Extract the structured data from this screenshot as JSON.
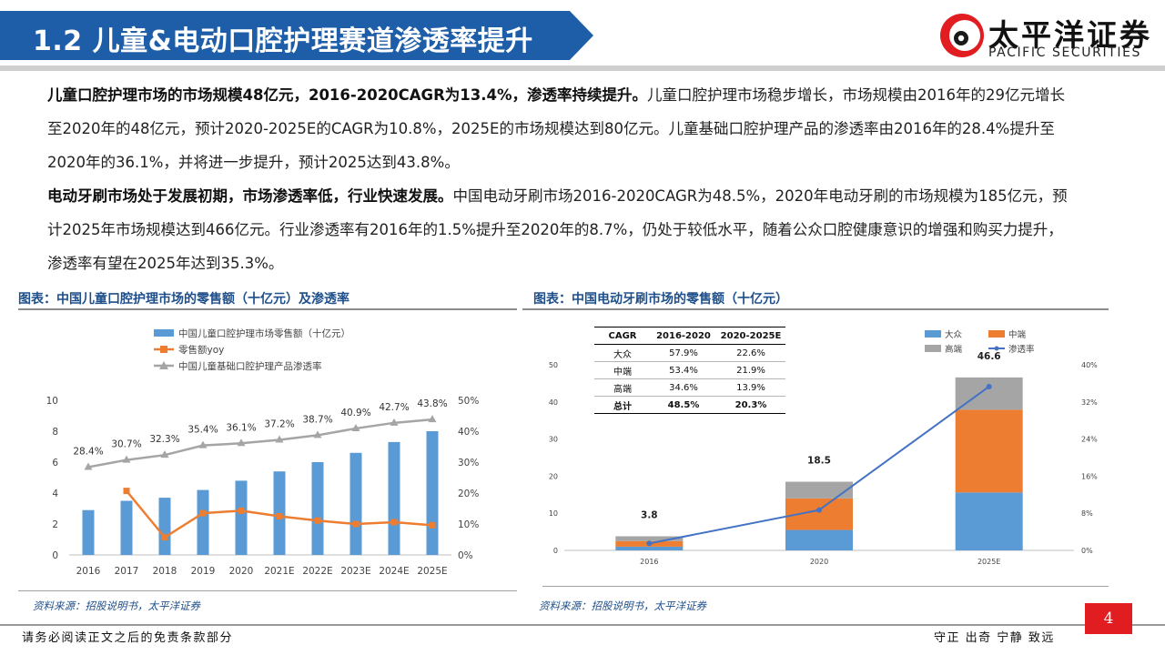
{
  "header": {
    "title": "1.2 儿童&电动口腔护理赛道渗透率提升",
    "logo_cn": "太平洋证券",
    "logo_en": "PACIFIC SECURITIES"
  },
  "body": {
    "p1_bold": "儿童口腔护理市场的市场规模48亿元，2016-2020CAGR为13.4%，渗透率持续提升。",
    "p1_text": "儿童口腔护理市场稳步增长，市场规模由2016年的29亿元增长至2020年的48亿元，预计2020-2025E的CAGR为10.8%，2025E的市场规模达到80亿元。儿童基础口腔护理产品的渗透率由2016年的28.4%提升至2020年的36.1%，并将进一步提升，预计2025达到43.8%。",
    "p2_bold": "电动牙刷市场处于发展初期，市场渗透率低，行业快速发展。",
    "p2_text": "中国电动牙刷市场2016-2020CAGR为48.5%，2020年电动牙刷的市场规模为185亿元，预计2025年市场规模达到466亿元。行业渗透率有2016年的1.5%提升至2020年的8.7%，仍处于较低水平，随着公众口腔健康意识的增强和购买力提升，渗透率有望在2025年达到35.3%。"
  },
  "left_panel": {
    "title": "图表：中国儿童口腔护理市场的零售额（十亿元）及渗透率",
    "source": "资料来源：招股说明书，太平洋证券"
  },
  "right_panel": {
    "title": "图表：中国电动牙刷市场的零售额（十亿元）",
    "source": "资料来源：招股说明书，太平洋证券",
    "table": {
      "headers": [
        "CAGR",
        "2016-2020",
        "2020-2025E"
      ],
      "rows": [
        [
          "大众",
          "57.9%",
          "22.6%"
        ],
        [
          "中端",
          "53.4%",
          "21.9%"
        ],
        [
          "高端",
          "34.6%",
          "13.9%"
        ]
      ],
      "total": [
        "总计",
        "48.5%",
        "20.3%"
      ]
    }
  },
  "footer": {
    "left": "请务必阅读正文之后的免责条款部分",
    "right": "守正 出奇 宁静 致远",
    "page": "4"
  },
  "colors": {
    "brand_blue": "#1e5ea8",
    "bar_blue": "#5b9bd5",
    "orange": "#ed7d31",
    "gray": "#a5a5a5",
    "line_blue": "#4472c4",
    "page_red": "#e11d22"
  },
  "chart_data": [
    {
      "type": "bar",
      "categories": [
        "2016",
        "2017",
        "2018",
        "2019",
        "2020",
        "2021E",
        "2022E",
        "2023E",
        "2024E",
        "2025E"
      ],
      "series": [
        {
          "name": "中国儿童口腔护理市场零售额（十亿元）",
          "kind": "bar",
          "axis": "left",
          "values": [
            2.9,
            3.5,
            3.7,
            4.2,
            4.8,
            5.4,
            6.0,
            6.6,
            7.3,
            8.0
          ]
        },
        {
          "name": "零售额yoy",
          "kind": "line",
          "axis": "right",
          "values": [
            null,
            20.7,
            5.7,
            13.5,
            14.3,
            12.5,
            11.1,
            10.0,
            10.6,
            9.6
          ]
        },
        {
          "name": "中国儿童基础口腔护理产品渗透率",
          "kind": "line",
          "axis": "right",
          "values": [
            28.4,
            30.7,
            32.3,
            35.4,
            36.1,
            37.2,
            38.7,
            40.9,
            42.7,
            43.8
          ],
          "labels": [
            "28.4%",
            "30.7%",
            "32.3%",
            "35.4%",
            "36.1%",
            "37.2%",
            "38.7%",
            "40.9%",
            "42.7%",
            "43.8%"
          ]
        }
      ],
      "y_ticks": [
        "0",
        "2",
        "4",
        "6",
        "8",
        "10"
      ],
      "y2_ticks": [
        "0%",
        "10%",
        "20%",
        "30%",
        "40%",
        "50%"
      ],
      "ylim": [
        0,
        10
      ],
      "y2lim": [
        0,
        50
      ],
      "legend": "top-left"
    },
    {
      "type": "bar",
      "stacked": true,
      "categories": [
        "2016",
        "2020",
        "2025E"
      ],
      "series": [
        {
          "name": "大众",
          "kind": "bar",
          "values": [
            1.0,
            5.5,
            15.6
          ]
        },
        {
          "name": "中端",
          "kind": "bar",
          "values": [
            1.5,
            8.5,
            22.3
          ]
        },
        {
          "name": "高端",
          "kind": "bar",
          "values": [
            1.3,
            4.5,
            8.7
          ]
        },
        {
          "name": "渗透率",
          "kind": "line",
          "axis": "right",
          "values": [
            1.5,
            8.7,
            35.3
          ]
        }
      ],
      "totals": [
        "3.8",
        "18.5",
        "46.6"
      ],
      "y_ticks": [
        "0",
        "10",
        "20",
        "30",
        "40",
        "50"
      ],
      "y2_ticks": [
        "0%",
        "8%",
        "16%",
        "24%",
        "32%",
        "40%"
      ],
      "ylim": [
        0,
        50
      ],
      "y2lim": [
        0,
        40
      ],
      "legend": "top-right"
    }
  ]
}
